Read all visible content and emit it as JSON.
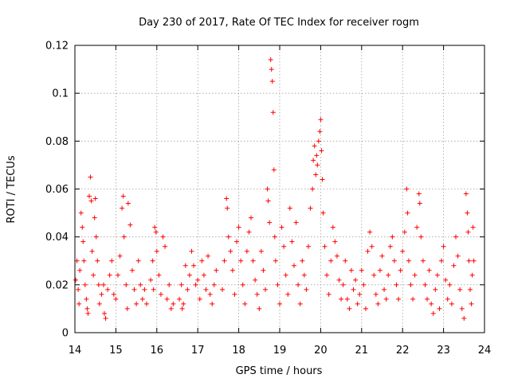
{
  "chart_data": {
    "type": "scatter",
    "title": "Day 230 of 2017, Rate Of TEC Index for receiver rogm",
    "xlabel": "GPS time / hours",
    "ylabel": "ROTI / TECUs",
    "xlim": [
      14,
      24
    ],
    "ylim": [
      0,
      0.12
    ],
    "x_ticks": [
      "14",
      "15",
      "16",
      "17",
      "18",
      "19",
      "20",
      "21",
      "22",
      "23",
      "24"
    ],
    "y_ticks": [
      "0",
      "0.02",
      "0.04",
      "0.06",
      "0.08",
      "0.1",
      "0.12"
    ],
    "grid": true,
    "marker": "+",
    "color": "#ff0000",
    "series": [
      {
        "points": [
          [
            14.02,
            0.022
          ],
          [
            14.05,
            0.03
          ],
          [
            14.08,
            0.018
          ],
          [
            14.1,
            0.012
          ],
          [
            14.12,
            0.026
          ],
          [
            14.15,
            0.05
          ],
          [
            14.18,
            0.044
          ],
          [
            14.2,
            0.038
          ],
          [
            14.22,
            0.03
          ],
          [
            14.25,
            0.02
          ],
          [
            14.28,
            0.014
          ],
          [
            14.3,
            0.01
          ],
          [
            14.32,
            0.008
          ],
          [
            14.35,
            0.057
          ],
          [
            14.38,
            0.065
          ],
          [
            14.4,
            0.055
          ],
          [
            14.42,
            0.034
          ],
          [
            14.45,
            0.024
          ],
          [
            14.48,
            0.048
          ],
          [
            14.5,
            0.056
          ],
          [
            14.52,
            0.04
          ],
          [
            14.55,
            0.03
          ],
          [
            14.58,
            0.02
          ],
          [
            14.6,
            0.012
          ],
          [
            14.65,
            0.016
          ],
          [
            14.7,
            0.02
          ],
          [
            14.72,
            0.008
          ],
          [
            14.75,
            0.006
          ],
          [
            14.8,
            0.018
          ],
          [
            14.85,
            0.024
          ],
          [
            14.9,
            0.03
          ],
          [
            14.95,
            0.016
          ],
          [
            15.0,
            0.014
          ],
          [
            15.05,
            0.024
          ],
          [
            15.1,
            0.032
          ],
          [
            15.15,
            0.052
          ],
          [
            15.18,
            0.057
          ],
          [
            15.2,
            0.04
          ],
          [
            15.25,
            0.02
          ],
          [
            15.28,
            0.01
          ],
          [
            15.3,
            0.054
          ],
          [
            15.35,
            0.045
          ],
          [
            15.4,
            0.026
          ],
          [
            15.45,
            0.018
          ],
          [
            15.5,
            0.012
          ],
          [
            15.55,
            0.03
          ],
          [
            15.6,
            0.02
          ],
          [
            15.65,
            0.014
          ],
          [
            15.7,
            0.018
          ],
          [
            15.75,
            0.012
          ],
          [
            15.85,
            0.022
          ],
          [
            15.9,
            0.03
          ],
          [
            15.92,
            0.018
          ],
          [
            15.95,
            0.044
          ],
          [
            15.98,
            0.042
          ],
          [
            16.0,
            0.034
          ],
          [
            16.05,
            0.024
          ],
          [
            16.1,
            0.016
          ],
          [
            16.15,
            0.04
          ],
          [
            16.2,
            0.036
          ],
          [
            16.25,
            0.014
          ],
          [
            16.3,
            0.02
          ],
          [
            16.35,
            0.01
          ],
          [
            16.4,
            0.012
          ],
          [
            16.55,
            0.014
          ],
          [
            16.6,
            0.02
          ],
          [
            16.62,
            0.01
          ],
          [
            16.65,
            0.012
          ],
          [
            16.7,
            0.028
          ],
          [
            16.75,
            0.018
          ],
          [
            16.8,
            0.024
          ],
          [
            16.85,
            0.034
          ],
          [
            16.9,
            0.028
          ],
          [
            16.95,
            0.02
          ],
          [
            17.0,
            0.022
          ],
          [
            17.05,
            0.014
          ],
          [
            17.1,
            0.03
          ],
          [
            17.15,
            0.024
          ],
          [
            17.2,
            0.018
          ],
          [
            17.25,
            0.032
          ],
          [
            17.3,
            0.016
          ],
          [
            17.35,
            0.012
          ],
          [
            17.4,
            0.02
          ],
          [
            17.45,
            0.026
          ],
          [
            17.6,
            0.018
          ],
          [
            17.65,
            0.03
          ],
          [
            17.7,
            0.056
          ],
          [
            17.72,
            0.052
          ],
          [
            17.75,
            0.04
          ],
          [
            17.8,
            0.034
          ],
          [
            17.85,
            0.026
          ],
          [
            17.9,
            0.016
          ],
          [
            17.95,
            0.038
          ],
          [
            18.0,
            0.044
          ],
          [
            18.05,
            0.03
          ],
          [
            18.1,
            0.02
          ],
          [
            18.15,
            0.012
          ],
          [
            18.2,
            0.034
          ],
          [
            18.25,
            0.042
          ],
          [
            18.3,
            0.048
          ],
          [
            18.35,
            0.03
          ],
          [
            18.4,
            0.022
          ],
          [
            18.45,
            0.016
          ],
          [
            18.5,
            0.01
          ],
          [
            18.55,
            0.034
          ],
          [
            18.6,
            0.026
          ],
          [
            18.65,
            0.018
          ],
          [
            18.7,
            0.06
          ],
          [
            18.72,
            0.055
          ],
          [
            18.75,
            0.046
          ],
          [
            18.78,
            0.114
          ],
          [
            18.8,
            0.11
          ],
          [
            18.82,
            0.105
          ],
          [
            18.84,
            0.092
          ],
          [
            18.86,
            0.068
          ],
          [
            18.88,
            0.04
          ],
          [
            18.9,
            0.03
          ],
          [
            18.95,
            0.02
          ],
          [
            19.0,
            0.012
          ],
          [
            19.05,
            0.044
          ],
          [
            19.1,
            0.036
          ],
          [
            19.15,
            0.024
          ],
          [
            19.2,
            0.016
          ],
          [
            19.25,
            0.052
          ],
          [
            19.3,
            0.038
          ],
          [
            19.35,
            0.028
          ],
          [
            19.4,
            0.046
          ],
          [
            19.45,
            0.02
          ],
          [
            19.5,
            0.012
          ],
          [
            19.55,
            0.03
          ],
          [
            19.6,
            0.024
          ],
          [
            19.65,
            0.018
          ],
          [
            19.7,
            0.036
          ],
          [
            19.75,
            0.052
          ],
          [
            19.8,
            0.06
          ],
          [
            19.82,
            0.072
          ],
          [
            19.85,
            0.078
          ],
          [
            19.88,
            0.066
          ],
          [
            19.9,
            0.074
          ],
          [
            19.92,
            0.07
          ],
          [
            19.95,
            0.08
          ],
          [
            19.98,
            0.084
          ],
          [
            20.0,
            0.089
          ],
          [
            20.02,
            0.076
          ],
          [
            20.04,
            0.064
          ],
          [
            20.06,
            0.05
          ],
          [
            20.1,
            0.036
          ],
          [
            20.15,
            0.024
          ],
          [
            20.2,
            0.016
          ],
          [
            20.25,
            0.03
          ],
          [
            20.3,
            0.044
          ],
          [
            20.35,
            0.038
          ],
          [
            20.4,
            0.032
          ],
          [
            20.45,
            0.022
          ],
          [
            20.5,
            0.014
          ],
          [
            20.55,
            0.02
          ],
          [
            20.6,
            0.03
          ],
          [
            20.65,
            0.014
          ],
          [
            20.7,
            0.01
          ],
          [
            20.75,
            0.026
          ],
          [
            20.8,
            0.018
          ],
          [
            20.85,
            0.022
          ],
          [
            20.9,
            0.012
          ],
          [
            20.95,
            0.016
          ],
          [
            21.0,
            0.026
          ],
          [
            21.05,
            0.02
          ],
          [
            21.1,
            0.01
          ],
          [
            21.15,
            0.034
          ],
          [
            21.2,
            0.042
          ],
          [
            21.25,
            0.036
          ],
          [
            21.3,
            0.024
          ],
          [
            21.35,
            0.016
          ],
          [
            21.4,
            0.012
          ],
          [
            21.45,
            0.026
          ],
          [
            21.5,
            0.032
          ],
          [
            21.55,
            0.018
          ],
          [
            21.6,
            0.014
          ],
          [
            21.65,
            0.024
          ],
          [
            21.7,
            0.036
          ],
          [
            21.75,
            0.04
          ],
          [
            21.8,
            0.03
          ],
          [
            21.85,
            0.02
          ],
          [
            21.9,
            0.014
          ],
          [
            21.95,
            0.026
          ],
          [
            22.0,
            0.034
          ],
          [
            22.05,
            0.042
          ],
          [
            22.1,
            0.06
          ],
          [
            22.12,
            0.05
          ],
          [
            22.15,
            0.03
          ],
          [
            22.2,
            0.02
          ],
          [
            22.25,
            0.014
          ],
          [
            22.3,
            0.024
          ],
          [
            22.35,
            0.044
          ],
          [
            22.4,
            0.058
          ],
          [
            22.42,
            0.054
          ],
          [
            22.45,
            0.04
          ],
          [
            22.5,
            0.03
          ],
          [
            22.55,
            0.02
          ],
          [
            22.6,
            0.014
          ],
          [
            22.65,
            0.026
          ],
          [
            22.7,
            0.012
          ],
          [
            22.75,
            0.008
          ],
          [
            22.8,
            0.018
          ],
          [
            22.85,
            0.024
          ],
          [
            22.9,
            0.01
          ],
          [
            22.95,
            0.03
          ],
          [
            23.0,
            0.036
          ],
          [
            23.05,
            0.022
          ],
          [
            23.1,
            0.014
          ],
          [
            23.15,
            0.02
          ],
          [
            23.2,
            0.012
          ],
          [
            23.25,
            0.028
          ],
          [
            23.3,
            0.04
          ],
          [
            23.35,
            0.032
          ],
          [
            23.4,
            0.018
          ],
          [
            23.45,
            0.01
          ],
          [
            23.5,
            0.006
          ],
          [
            23.55,
            0.058
          ],
          [
            23.58,
            0.05
          ],
          [
            23.6,
            0.042
          ],
          [
            23.62,
            0.03
          ],
          [
            23.65,
            0.018
          ],
          [
            23.68,
            0.012
          ],
          [
            23.7,
            0.024
          ],
          [
            23.72,
            0.044
          ],
          [
            23.74,
            0.03
          ]
        ]
      }
    ]
  }
}
